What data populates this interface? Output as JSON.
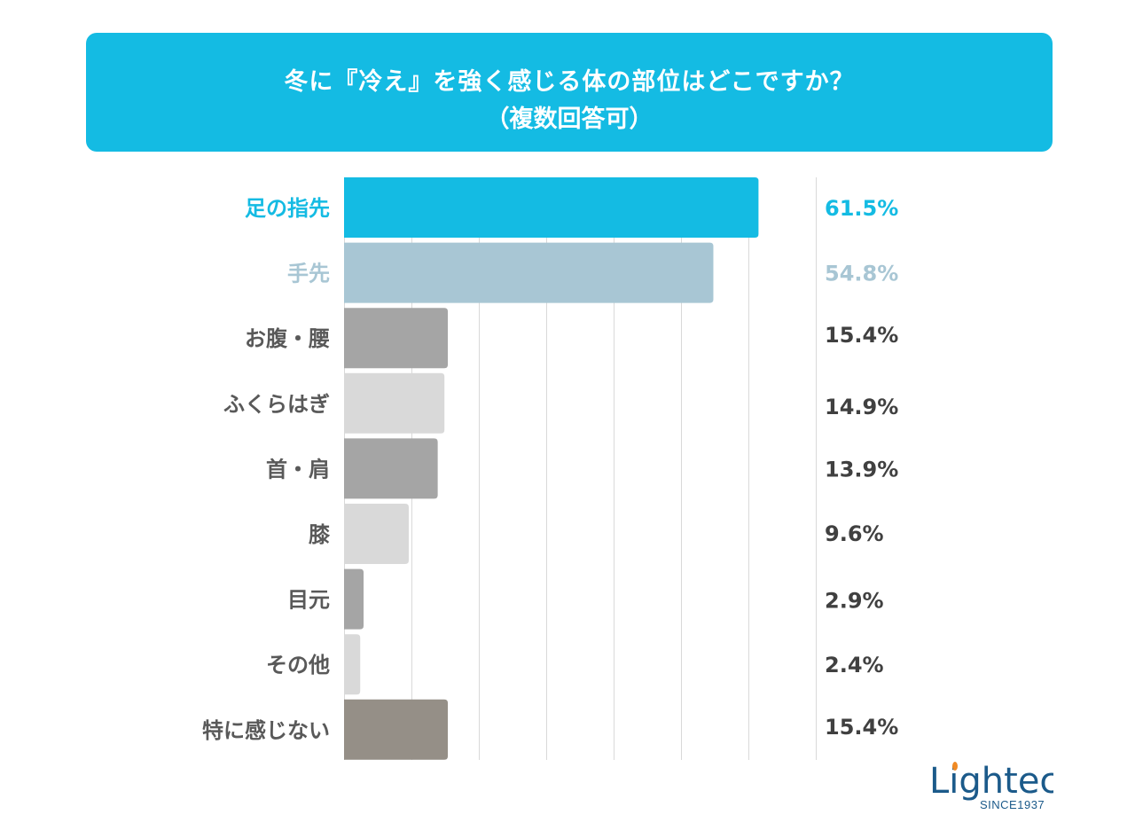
{
  "header": {
    "title_line1": "冬に『冷え』を強く感じる体の部位はどこですか？",
    "title_line2": "（複数回答可）",
    "background_color": "#14bbe3"
  },
  "chart_data": {
    "type": "bar",
    "orientation": "horizontal",
    "title": "冬に『冷え』を強く感じる体の部位はどこですか？（複数回答可）",
    "xlabel": "",
    "ylabel": "",
    "xlim": [
      0,
      70
    ],
    "grid": true,
    "grid_step": 10,
    "unit": "%",
    "categories": [
      "足の指先",
      "手先",
      "お腹・腰",
      "ふくらはぎ",
      "首・肩",
      "膝",
      "目元",
      "その他",
      "特に感じない"
    ],
    "values": [
      61.5,
      54.8,
      15.4,
      14.9,
      13.9,
      9.6,
      2.9,
      2.4,
      15.4
    ],
    "value_labels": [
      "61.5%",
      "54.8%",
      "15.4%",
      "14.9%",
      "13.9%",
      "9.6%",
      "2.9%",
      "2.4%",
      "15.4%"
    ],
    "bar_colors": [
      "#14bbe3",
      "#a8c6d4",
      "#a5a5a5",
      "#d9d9d9",
      "#a5a5a5",
      "#d9d9d9",
      "#a5a5a5",
      "#d9d9d9",
      "#958f87"
    ],
    "label_colors": [
      "#14bbe3",
      "#a8c6d4",
      "#595959",
      "#595959",
      "#595959",
      "#595959",
      "#595959",
      "#595959",
      "#595959"
    ],
    "value_colors": [
      "#14bbe3",
      "#a8c6d4",
      "#404040",
      "#404040",
      "#404040",
      "#404040",
      "#404040",
      "#404040",
      "#404040"
    ]
  },
  "logo": {
    "text": "Lightec",
    "subtext": "SINCE1937",
    "color": "#1b5a8a",
    "accent_color": "#f08a24"
  }
}
